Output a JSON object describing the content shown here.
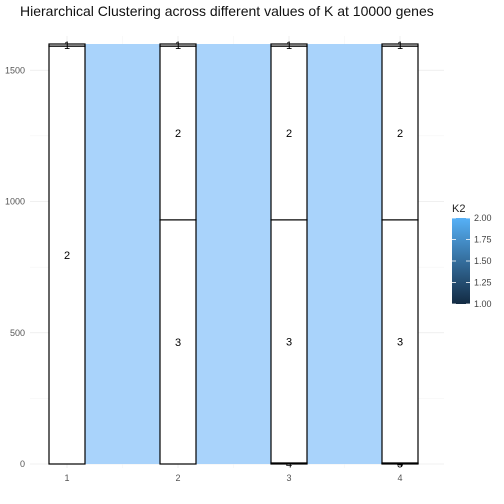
{
  "chart_data": {
    "type": "alluvial",
    "title": "Hierarchical Clustering across different values of K at 10000 genes",
    "xlabel": "",
    "ylabel": "",
    "x_categories": [
      "1",
      "2",
      "3",
      "4"
    ],
    "ylim": [
      0,
      1600
    ],
    "y_ticks": [
      0,
      500,
      1000,
      1500
    ],
    "y_tick_labels": [
      "0",
      "500",
      "1000",
      "1500"
    ],
    "grid": true,
    "total": 1600,
    "axes": [
      {
        "x": "1",
        "strata": [
          {
            "label": "2",
            "from": 0,
            "to": 1592
          },
          {
            "label": "1",
            "from": 1592,
            "to": 1600
          }
        ]
      },
      {
        "x": "2",
        "strata": [
          {
            "label": "3",
            "from": 0,
            "to": 930
          },
          {
            "label": "2",
            "from": 930,
            "to": 1592
          },
          {
            "label": "1",
            "from": 1592,
            "to": 1600
          }
        ]
      },
      {
        "x": "3",
        "strata": [
          {
            "label": "4",
            "from": 0,
            "to": 4
          },
          {
            "label": "3",
            "from": 4,
            "to": 930
          },
          {
            "label": "2",
            "from": 930,
            "to": 1592
          },
          {
            "label": "1",
            "from": 1592,
            "to": 1600
          }
        ]
      },
      {
        "x": "4",
        "strata": [
          {
            "label": "5",
            "from": 0,
            "to": 2
          },
          {
            "label": "4",
            "from": 2,
            "to": 4
          },
          {
            "label": "3",
            "from": 4,
            "to": 930
          },
          {
            "label": "2",
            "from": 930,
            "to": 1592
          },
          {
            "label": "1",
            "from": 1592,
            "to": 1600
          }
        ]
      }
    ],
    "legend": {
      "title": "K2",
      "position": "right",
      "min": 1.0,
      "max": 2.0,
      "ticks": [
        "2.00",
        "1.75",
        "1.50",
        "1.25",
        "1.00"
      ],
      "color_low": "#132b43",
      "color_high": "#56b1f7"
    },
    "flow_color": "#a9d3fb",
    "stratum_fill": "#ffffff",
    "stratum_stroke": "#000000"
  }
}
